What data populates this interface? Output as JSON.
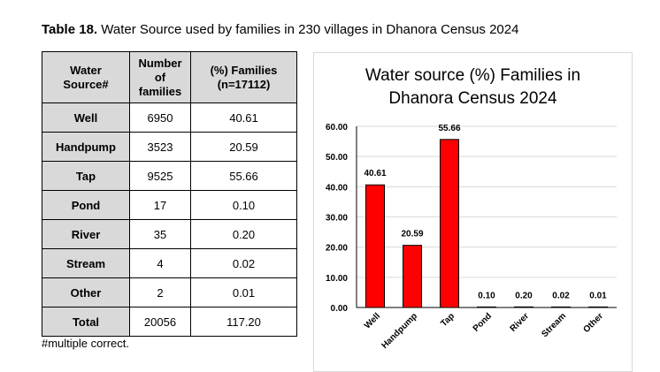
{
  "caption": {
    "label": "Table 18.",
    "text": " Water Source used by families in 230 villages in Dhanora Census 2024"
  },
  "table": {
    "headers": [
      [
        "Water",
        "Source#"
      ],
      [
        "Number",
        "of",
        "families"
      ],
      [
        "(%) Families",
        "(n=17112)"
      ]
    ],
    "rows": [
      {
        "source": "Well",
        "families": "6950",
        "percent": "40.61"
      },
      {
        "source": "Handpump",
        "families": "3523",
        "percent": "20.59"
      },
      {
        "source": "Tap",
        "families": "9525",
        "percent": "55.66"
      },
      {
        "source": "Pond",
        "families": "17",
        "percent": "0.10"
      },
      {
        "source": "River",
        "families": "35",
        "percent": "0.20"
      },
      {
        "source": "Stream",
        "families": "4",
        "percent": "0.02"
      },
      {
        "source": "Other",
        "families": "2",
        "percent": "0.01"
      },
      {
        "source": "Total",
        "families": "20056",
        "percent": "117.20"
      }
    ]
  },
  "footnote": "#multiple correct.",
  "chart_data": {
    "type": "bar",
    "title_lines": [
      "Water source (%) Families in",
      "Dhanora Census 2024"
    ],
    "categories": [
      "Well",
      "Handpump",
      "Tap",
      "Pond",
      "River",
      "Stream",
      "Other"
    ],
    "values": [
      40.61,
      20.59,
      55.66,
      0.1,
      0.2,
      0.02,
      0.01
    ],
    "value_labels": [
      "40.61",
      "20.59",
      "55.66",
      "0.10",
      "0.20",
      "0.02",
      "0.01"
    ],
    "yticks": [
      "0.00",
      "10.00",
      "20.00",
      "30.00",
      "40.00",
      "50.00",
      "60.00"
    ],
    "ylim": [
      0,
      60
    ],
    "bar_color": "#ff0000",
    "bar_stroke": "#000000",
    "grid": true,
    "grid_color": "#d9d9d9",
    "xlabel": "",
    "ylabel": ""
  }
}
